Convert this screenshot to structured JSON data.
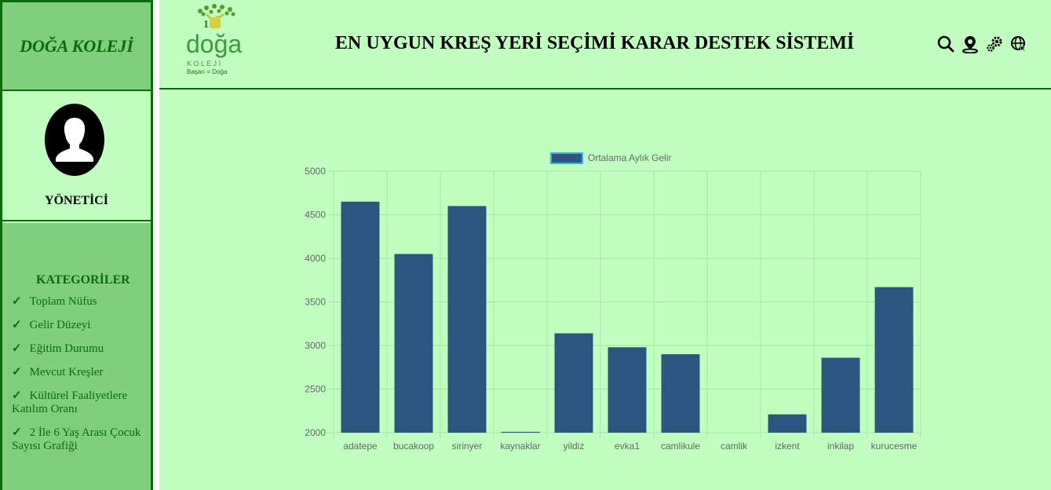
{
  "sidebar": {
    "brand": "DOĞA KOLEJİ",
    "role": "YÖNETİCİ",
    "categories_title": "KATEGORİLER",
    "categories": [
      "Toplam Nüfus",
      "Gelir Düzeyi",
      "Eğitim Durumu",
      "Mevcut Kreşler",
      "Kültürel Faaliyetlere Katılım Oranı",
      "2 İle 6 Yaş Arası Çocuk Sayısı Grafiği"
    ],
    "check_glyph": "✓"
  },
  "header": {
    "logo": {
      "word": "doğa",
      "sub": "K O L E J İ",
      "slogan": "Başarı = Doğa",
      "number": "1"
    },
    "title": "EN UYGUN KREŞ YERİ SEÇİMİ KARAR DESTEK SİSTEMİ",
    "icons": [
      "search-icon",
      "location-person-icon",
      "gears-icon",
      "globe-icon"
    ]
  },
  "colors": {
    "background": "#c1ffc1",
    "sidebar_green": "#7fcf7f",
    "dark_green": "#0b6b0b",
    "bar": "#2c5580",
    "bar_legend_border": "#3fa9f5",
    "grid": "#a8e6a8",
    "tick_text": "#666666"
  },
  "chart_data": {
    "type": "bar",
    "categories": [
      "adatepe",
      "bucakoop",
      "sirinyer",
      "kaynaklar",
      "yildiz",
      "evka1",
      "camlikule",
      "camlik",
      "izkent",
      "inkilap",
      "kurucesme"
    ],
    "series": [
      {
        "name": "Ortalama Aylık Gelir",
        "values": [
          4650,
          4050,
          4600,
          2010,
          3140,
          2980,
          2900,
          2000,
          2210,
          2860,
          3670
        ]
      }
    ],
    "ylim": [
      2000,
      5000
    ],
    "yticks": [
      2000,
      2500,
      3000,
      3500,
      4000,
      4500,
      5000
    ],
    "grid": true,
    "legend_position": "top"
  }
}
